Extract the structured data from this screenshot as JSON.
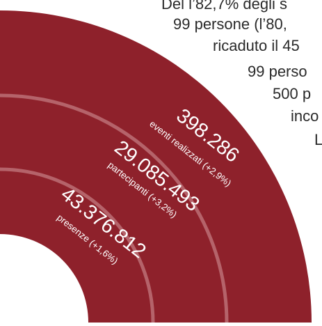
{
  "colors": {
    "arc_fill": "#8e212b",
    "separator": "#b5636a",
    "label_text": "#ffffff",
    "body_text": "#2a2a2a"
  },
  "body_text_lines": [
    "Del l’82,7% degli s",
    "99 persone (l’80,",
    "ricaduto il 45",
    "99 perso",
    "500 p",
    "inco",
    "L"
  ],
  "stats": [
    {
      "value": "398.286",
      "label": "eventi realizzati (+2,9%)"
    },
    {
      "value": "29.085.493",
      "label": "partecipanti (+3,2%)"
    },
    {
      "value": "43.376.812",
      "label": "presenze (+1,6%)"
    }
  ]
}
